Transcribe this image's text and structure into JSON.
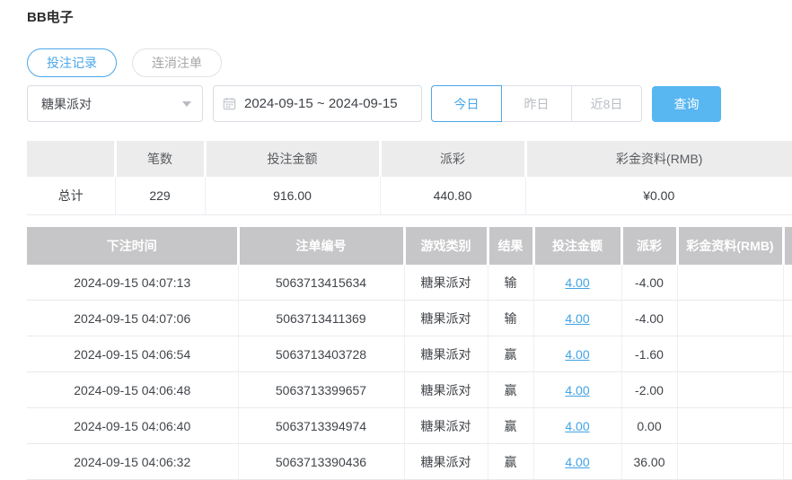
{
  "page": {
    "title": "BB电子"
  },
  "tabs": [
    {
      "label": "投注记录",
      "active": true
    },
    {
      "label": "连消注单",
      "active": false
    }
  ],
  "filters": {
    "game_select": {
      "value": "糖果派对"
    },
    "date_range": {
      "value": "2024-09-15 ~ 2024-09-15"
    },
    "quick_ranges": [
      {
        "label": "今日",
        "active": true
      },
      {
        "label": "昨日",
        "active": false
      },
      {
        "label": "近8日",
        "active": false
      }
    ],
    "search_button": "查询"
  },
  "summary_table": {
    "headers": [
      "",
      "笔数",
      "投注金额",
      "派彩",
      "彩金资料(RMB)"
    ],
    "total_row": [
      "总计",
      "229",
      "916.00",
      "440.80",
      "¥0.00"
    ]
  },
  "detail_table": {
    "headers": [
      "下注时间",
      "注单编号",
      "游戏类别",
      "结果",
      "投注金额",
      "派彩",
      "彩金资料(RMB)"
    ],
    "columns": [
      "time",
      "order_id",
      "game",
      "result",
      "bet",
      "payout",
      "jackpot"
    ],
    "rows": [
      {
        "time": "2024-09-15 04:07:13",
        "order_id": "5063713415634",
        "game": "糖果派对",
        "result": "输",
        "bet": "4.00",
        "payout": "-4.00",
        "jackpot": ""
      },
      {
        "time": "2024-09-15 04:07:06",
        "order_id": "5063713411369",
        "game": "糖果派对",
        "result": "输",
        "bet": "4.00",
        "payout": "-4.00",
        "jackpot": ""
      },
      {
        "time": "2024-09-15 04:06:54",
        "order_id": "5063713403728",
        "game": "糖果派对",
        "result": "赢",
        "bet": "4.00",
        "payout": "-1.60",
        "jackpot": ""
      },
      {
        "time": "2024-09-15 04:06:48",
        "order_id": "5063713399657",
        "game": "糖果派对",
        "result": "赢",
        "bet": "4.00",
        "payout": "-2.00",
        "jackpot": ""
      },
      {
        "time": "2024-09-15 04:06:40",
        "order_id": "5063713394974",
        "game": "糖果派对",
        "result": "赢",
        "bet": "4.00",
        "payout": "0.00",
        "jackpot": ""
      },
      {
        "time": "2024-09-15 04:06:32",
        "order_id": "5063713390436",
        "game": "糖果派对",
        "result": "赢",
        "bet": "4.00",
        "payout": "36.00",
        "jackpot": ""
      }
    ]
  },
  "colors": {
    "accent": "#4aa7e9",
    "search_button_bg": "#58b6f1",
    "link": "#41a3e5",
    "negative": "#f0555a",
    "detail_header_bg": "#c6c6c8",
    "summary_header_bg": "#ececec"
  }
}
